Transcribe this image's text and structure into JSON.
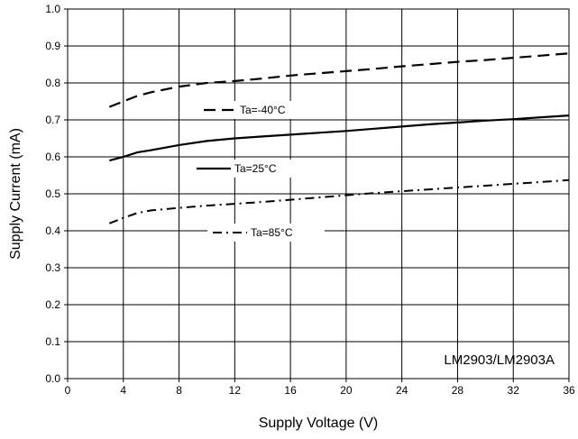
{
  "chart_data": {
    "type": "line",
    "xlabel": "Supply Voltage (V)",
    "ylabel": "Supply Current (mA)",
    "xlim": [
      0,
      36
    ],
    "ylim": [
      0.0,
      1.0
    ],
    "x_ticks": [
      "0",
      "4",
      "8",
      "12",
      "16",
      "20",
      "24",
      "28",
      "32",
      "36"
    ],
    "y_ticks": [
      "0.0",
      "0.1",
      "0.2",
      "0.3",
      "0.4",
      "0.5",
      "0.6",
      "0.7",
      "0.8",
      "0.9",
      "1.0"
    ],
    "grid": true,
    "annotation": "LM2903/LM2903A",
    "series": [
      {
        "name": "Ta=-40°C",
        "style": "dashed",
        "x": [
          3,
          4,
          5,
          6,
          8,
          10,
          12,
          14,
          16,
          18,
          20,
          22,
          24,
          26,
          28,
          30,
          32,
          34,
          36
        ],
        "y": [
          0.735,
          0.75,
          0.765,
          0.775,
          0.79,
          0.8,
          0.805,
          0.812,
          0.82,
          0.826,
          0.832,
          0.838,
          0.845,
          0.851,
          0.857,
          0.862,
          0.868,
          0.874,
          0.88
        ]
      },
      {
        "name": "Ta=25°C",
        "style": "solid",
        "x": [
          3,
          4,
          5,
          6,
          8,
          10,
          12,
          14,
          16,
          18,
          20,
          22,
          24,
          26,
          28,
          30,
          32,
          34,
          36
        ],
        "y": [
          0.59,
          0.6,
          0.612,
          0.618,
          0.632,
          0.643,
          0.65,
          0.655,
          0.66,
          0.665,
          0.67,
          0.676,
          0.682,
          0.688,
          0.693,
          0.698,
          0.702,
          0.707,
          0.712
        ]
      },
      {
        "name": "Ta=85°C",
        "style": "dashdot",
        "x": [
          3,
          4,
          5,
          6,
          8,
          10,
          12,
          14,
          16,
          18,
          20,
          22,
          24,
          26,
          28,
          30,
          32,
          34,
          36
        ],
        "y": [
          0.42,
          0.435,
          0.448,
          0.455,
          0.462,
          0.468,
          0.473,
          0.478,
          0.484,
          0.49,
          0.496,
          0.502,
          0.507,
          0.512,
          0.517,
          0.522,
          0.527,
          0.532,
          0.537
        ]
      }
    ]
  }
}
